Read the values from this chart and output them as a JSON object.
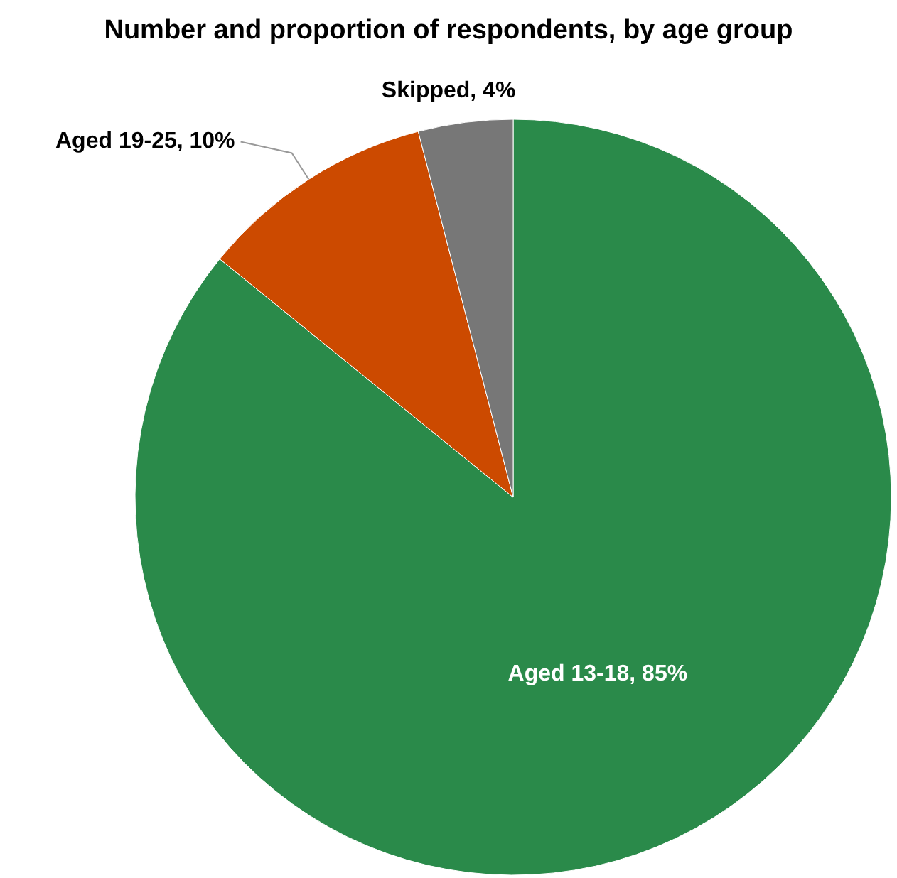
{
  "chart_data": {
    "type": "pie",
    "title": "Number and proportion of respondents, by age group",
    "categories": [
      "Aged 13-18",
      "Aged 19-25",
      "Skipped"
    ],
    "values": [
      85,
      10,
      4
    ],
    "value_labels": [
      "85%",
      "10%",
      "4%"
    ],
    "colors": [
      "#2a8a4a",
      "#cc4a00",
      "#777777"
    ]
  }
}
